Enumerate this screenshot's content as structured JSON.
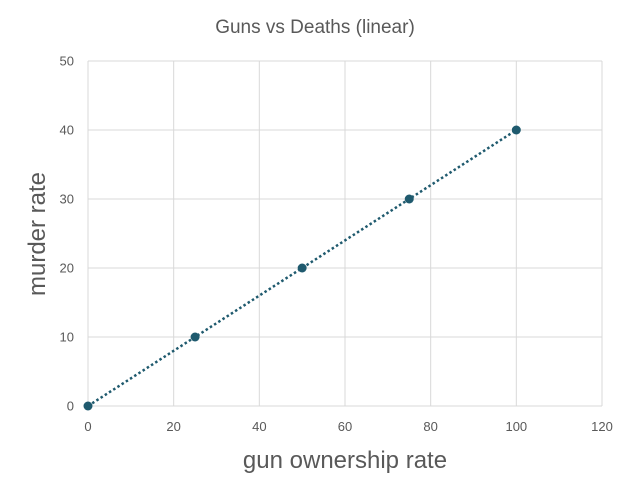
{
  "chart_data": {
    "type": "scatter",
    "title": "Guns vs Deaths (linear)",
    "xlabel": "gun ownership rate",
    "ylabel": "murder rate",
    "xlim": [
      0,
      120
    ],
    "ylim": [
      0,
      50
    ],
    "xticks": [
      0,
      20,
      40,
      60,
      80,
      100,
      120
    ],
    "yticks": [
      0,
      10,
      20,
      30,
      40,
      50
    ],
    "grid": true,
    "series": [
      {
        "x": [
          0,
          25,
          50,
          75,
          100
        ],
        "y": [
          0,
          10,
          20,
          30,
          40
        ],
        "color": "#1f5a6e",
        "trendline": {
          "type": "linear",
          "style": "dotted"
        }
      }
    ]
  }
}
